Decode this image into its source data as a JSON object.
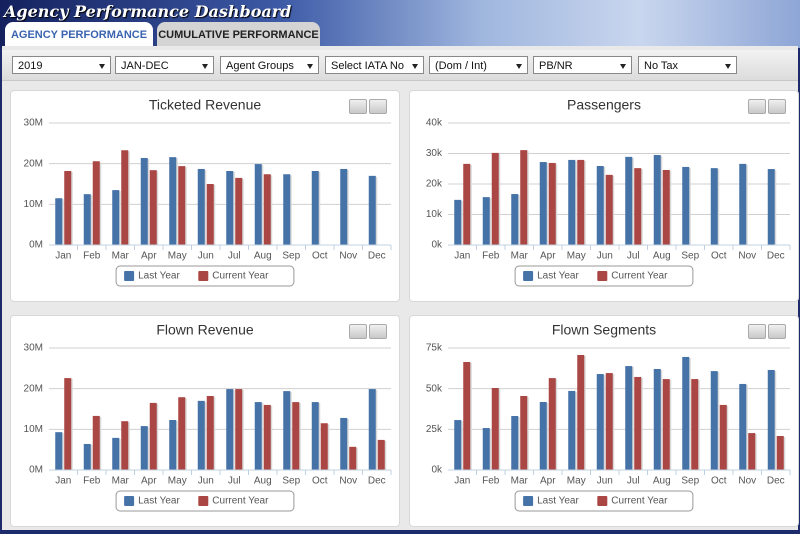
{
  "header": {
    "title": "Agency Performance Dashboard",
    "tabs": [
      "AGENCY PERFORMANCE",
      "CUMULATIVE PERFORMANCE"
    ]
  },
  "filters": [
    "2019",
    "JAN-DEC",
    "Agent Groups",
    "Select IATA No",
    "(Dom / Int)",
    "PB/NR",
    "No Tax"
  ],
  "chart_data": [
    {
      "type": "bar",
      "title": "Ticketed Revenue",
      "categories": [
        "Jan",
        "Feb",
        "Mar",
        "Apr",
        "May",
        "Jun",
        "Jul",
        "Aug",
        "Sep",
        "Oct",
        "Nov",
        "Dec"
      ],
      "series": [
        {
          "name": "Last Year",
          "color": "#4572a7",
          "values": [
            11.5,
            12.5,
            13.5,
            21.4,
            21.6,
            18.7,
            18.2,
            19.9,
            17.4,
            18.2,
            18.7,
            17.0
          ]
        },
        {
          "name": "Current Year",
          "color": "#aa4643",
          "values": [
            18.2,
            20.6,
            23.3,
            18.4,
            19.4,
            15.0,
            16.5,
            17.4,
            null,
            null,
            null,
            null
          ]
        }
      ],
      "ylim": [
        0,
        30
      ],
      "yticks": [
        {
          "value": 0,
          "label": "0M"
        },
        {
          "value": 10,
          "label": "10M"
        },
        {
          "value": 20,
          "label": "20M"
        },
        {
          "value": 30,
          "label": "30M"
        }
      ],
      "grid": true,
      "legend": "bottom"
    },
    {
      "type": "bar",
      "title": "Passengers",
      "categories": [
        "Jan",
        "Feb",
        "Mar",
        "Apr",
        "May",
        "Jun",
        "Jul",
        "Aug",
        "Sep",
        "Oct",
        "Nov",
        "Dec"
      ],
      "series": [
        {
          "name": "Last Year",
          "color": "#4572a7",
          "values": [
            14.8,
            15.7,
            16.7,
            27.2,
            27.9,
            25.9,
            28.9,
            29.5,
            25.6,
            25.2,
            26.6,
            24.9
          ]
        },
        {
          "name": "Current Year",
          "color": "#aa4643",
          "values": [
            26.6,
            30.2,
            31.1,
            26.9,
            27.9,
            23.0,
            25.2,
            24.6,
            null,
            null,
            null,
            null
          ]
        }
      ],
      "ylim": [
        0,
        40
      ],
      "yticks": [
        {
          "value": 0,
          "label": "0k"
        },
        {
          "value": 10,
          "label": "10k"
        },
        {
          "value": 20,
          "label": "20k"
        },
        {
          "value": 30,
          "label": "30k"
        },
        {
          "value": 40,
          "label": "40k"
        }
      ],
      "grid": true,
      "legend": "bottom"
    },
    {
      "type": "bar",
      "title": "Flown Revenue",
      "categories": [
        "Jan",
        "Feb",
        "Mar",
        "Apr",
        "May",
        "Jun",
        "Jul",
        "Aug",
        "Sep",
        "Oct",
        "Nov",
        "Dec"
      ],
      "series": [
        {
          "name": "Last Year",
          "color": "#4572a7",
          "values": [
            9.3,
            6.4,
            7.9,
            10.8,
            12.3,
            17.0,
            19.9,
            16.7,
            19.4,
            16.7,
            12.8,
            19.9
          ]
        },
        {
          "name": "Current Year",
          "color": "#aa4643",
          "values": [
            22.6,
            13.3,
            12.0,
            16.5,
            17.9,
            18.2,
            19.9,
            16.0,
            16.7,
            11.5,
            5.7,
            7.4
          ]
        }
      ],
      "ylim": [
        0,
        30
      ],
      "yticks": [
        {
          "value": 0,
          "label": "0M"
        },
        {
          "value": 10,
          "label": "10M"
        },
        {
          "value": 20,
          "label": "20M"
        },
        {
          "value": 30,
          "label": "30M"
        }
      ],
      "grid": true,
      "legend": "bottom"
    },
    {
      "type": "bar",
      "title": "Flown Segments",
      "categories": [
        "Jan",
        "Feb",
        "Mar",
        "Apr",
        "May",
        "Jun",
        "Jul",
        "Aug",
        "Sep",
        "Oct",
        "Nov",
        "Dec"
      ],
      "series": [
        {
          "name": "Last Year",
          "color": "#4572a7",
          "values": [
            30.7,
            25.8,
            33.2,
            41.8,
            48.6,
            59.0,
            63.9,
            62.1,
            69.5,
            60.8,
            52.9,
            61.5
          ]
        },
        {
          "name": "Current Year",
          "color": "#aa4643",
          "values": [
            66.4,
            50.4,
            45.5,
            56.5,
            70.7,
            59.6,
            57.2,
            55.9,
            55.9,
            40.0,
            22.7,
            20.9
          ]
        }
      ],
      "ylim": [
        0,
        75
      ],
      "yticks": [
        {
          "value": 0,
          "label": "0k"
        },
        {
          "value": 25,
          "label": "25k"
        },
        {
          "value": 50,
          "label": "50k"
        },
        {
          "value": 75,
          "label": "75k"
        }
      ],
      "grid": true,
      "legend": "bottom"
    }
  ]
}
